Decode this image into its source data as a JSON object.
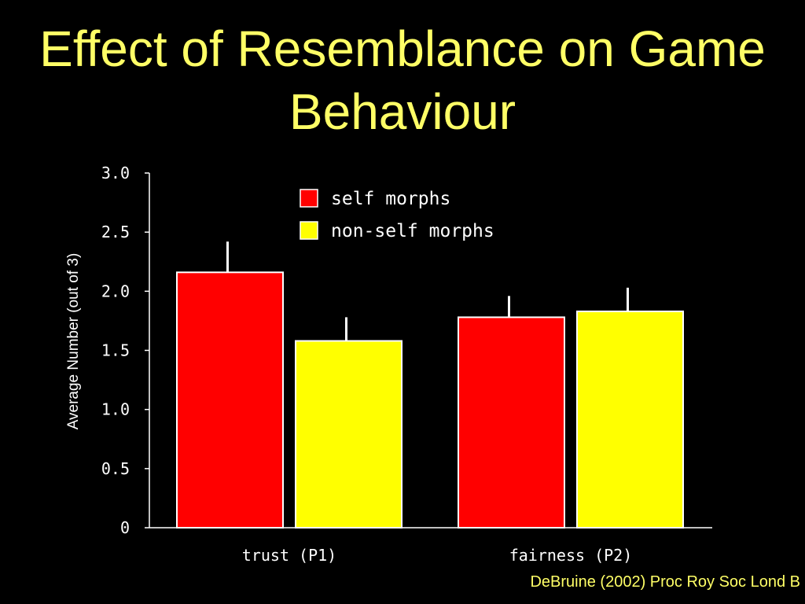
{
  "slide": {
    "title_line1": "Effect of Resemblance on Game",
    "title_line2": "Behaviour",
    "citation": "DeBruine (2002) Proc Roy Soc Lond B"
  },
  "colors": {
    "background": "#000000",
    "title": "#ffff66",
    "self": "#ff0000",
    "nonself": "#ffff00",
    "axis": "#ffffff"
  },
  "chart_data": {
    "type": "bar",
    "title": "",
    "xlabel": "",
    "ylabel": "Average Number (out of 3)",
    "ylim": [
      0,
      3
    ],
    "yticks": [
      "0",
      "0.5",
      "1.0",
      "1.5",
      "2.0",
      "2.5",
      "3.0"
    ],
    "categories": [
      "trust (P1)",
      "fairness (P2)"
    ],
    "series": [
      {
        "name": "self morphs",
        "color": "#ff0000",
        "values": [
          2.16,
          1.78
        ],
        "error": [
          0.26,
          0.18
        ]
      },
      {
        "name": "non-self morphs",
        "color": "#ffff00",
        "values": [
          1.58,
          1.83
        ],
        "error": [
          0.2,
          0.2
        ]
      }
    ],
    "legend_position": "top-center",
    "grid": false,
    "error_bars": "upper"
  }
}
